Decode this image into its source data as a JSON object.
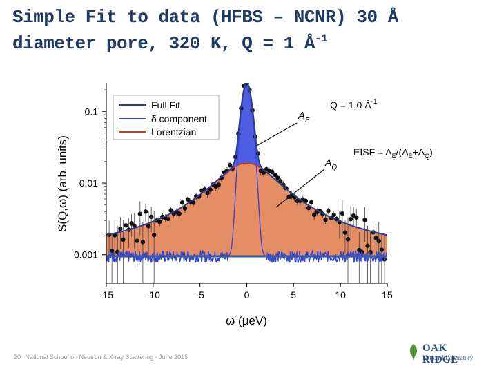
{
  "slide": {
    "title_line1": "Simple Fit to data (HFBS – NCNR) 30 Å",
    "title_line2_main": "diameter pore, 320 K, Q = 1 Å",
    "title_line2_sup": "-1",
    "page_number": "20",
    "footer_text": "National School on Neutron & X-ray Scattering -   June 2015",
    "logo_line1": "OAK RIDGE",
    "logo_line2": "National Laboratory"
  },
  "chart_data": {
    "type": "line",
    "xlabel": "ω (μeV)",
    "ylabel": "S(Q,ω) (arb. units)",
    "xlim": [
      -15,
      15
    ],
    "ylim": [
      0.0004,
      0.25
    ],
    "yscale": "log",
    "x_ticks": [
      -15,
      -10,
      -5,
      0,
      5,
      10,
      15
    ],
    "x_tick_labels": [
      "-15",
      "-10",
      "-5",
      "0",
      "5",
      "10",
      "15"
    ],
    "y_ticks": [
      0.001,
      0.01,
      0.1
    ],
    "y_tick_labels": [
      "0.001",
      "0.01",
      "0.1"
    ],
    "legend_position": "top-left",
    "series": [
      {
        "name": "Full Fit",
        "color": "#2e3b8f"
      },
      {
        "name": "δ component",
        "color": "#3545d8"
      },
      {
        "name": "Lorentzian",
        "color": "#cc3a1c"
      }
    ],
    "model": {
      "background": 0.00095,
      "lorentz_peak": 0.018,
      "lorentz_hwhm": 3.5,
      "delta_peak": 0.23,
      "delta_sigma": 0.45
    },
    "annotations": {
      "q_label": "Q = 1.0 Å",
      "q_label_sup": "-1",
      "ae_label": "A",
      "ae_sub": "E",
      "aq_label": "A",
      "aq_sub": "Q",
      "eisf_text": "EISF = A",
      "eisf_sub1": "E",
      "eisf_mid": "/(A",
      "eisf_sub2": "E",
      "eisf_plus": "+A",
      "eisf_sub3": "Q",
      "eisf_end": ")"
    }
  }
}
